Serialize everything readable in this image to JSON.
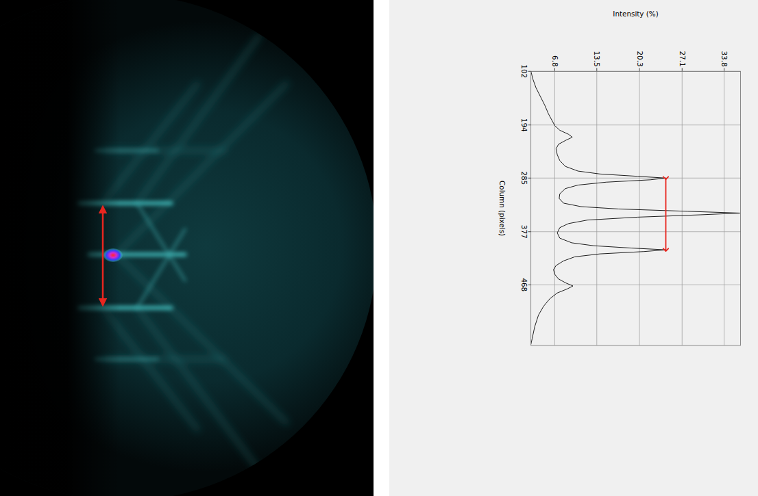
{
  "chart_data": {
    "type": "line",
    "xlabel": "Column (pixels)",
    "ylabel": "Intensity (%)",
    "x": [
      102,
      115,
      130,
      145,
      160,
      175,
      185,
      195,
      203,
      210,
      215,
      220,
      227,
      235,
      245,
      255,
      265,
      273,
      278,
      282,
      285,
      288,
      292,
      297,
      303,
      312,
      320,
      328,
      334,
      338,
      342,
      345,
      348,
      352,
      357,
      363,
      370,
      379,
      388,
      396,
      401,
      405,
      408,
      411,
      415,
      420,
      427,
      435,
      442,
      450,
      458,
      465,
      470,
      475,
      482,
      492,
      505,
      520,
      540,
      560,
      570
    ],
    "values": [
      3.0,
      3.3,
      3.8,
      4.5,
      5.2,
      5.8,
      6.3,
      6.8,
      7.6,
      9.0,
      9.6,
      8.6,
      7.4,
      7.0,
      7.2,
      7.6,
      8.5,
      10.5,
      14,
      20,
      24.5,
      22,
      15,
      10.5,
      8.5,
      7.6,
      7.5,
      8.2,
      11,
      17,
      28,
      36.3,
      30,
      20,
      12,
      9,
      7.6,
      7.2,
      7.6,
      9.5,
      13,
      19,
      24.5,
      21,
      14,
      10,
      8.2,
      7.0,
      6.6,
      6.8,
      7.4,
      8.6,
      9.7,
      8.8,
      7.2,
      6.0,
      5.0,
      4.2,
      3.6,
      3.2,
      3.0
    ],
    "color": "#000000",
    "xlim": [
      102,
      572
    ],
    "ylim": [
      3.0,
      36.4
    ],
    "xticks": [
      102,
      194,
      285,
      377,
      468
    ],
    "yticks": [
      6.8,
      13.5,
      20.3,
      27.1,
      33.8
    ],
    "grid": true,
    "annotations": [
      {
        "type": "arrow",
        "x": [
          285,
          408
        ],
        "y": 24.5,
        "color": "#e8261f"
      }
    ]
  }
}
